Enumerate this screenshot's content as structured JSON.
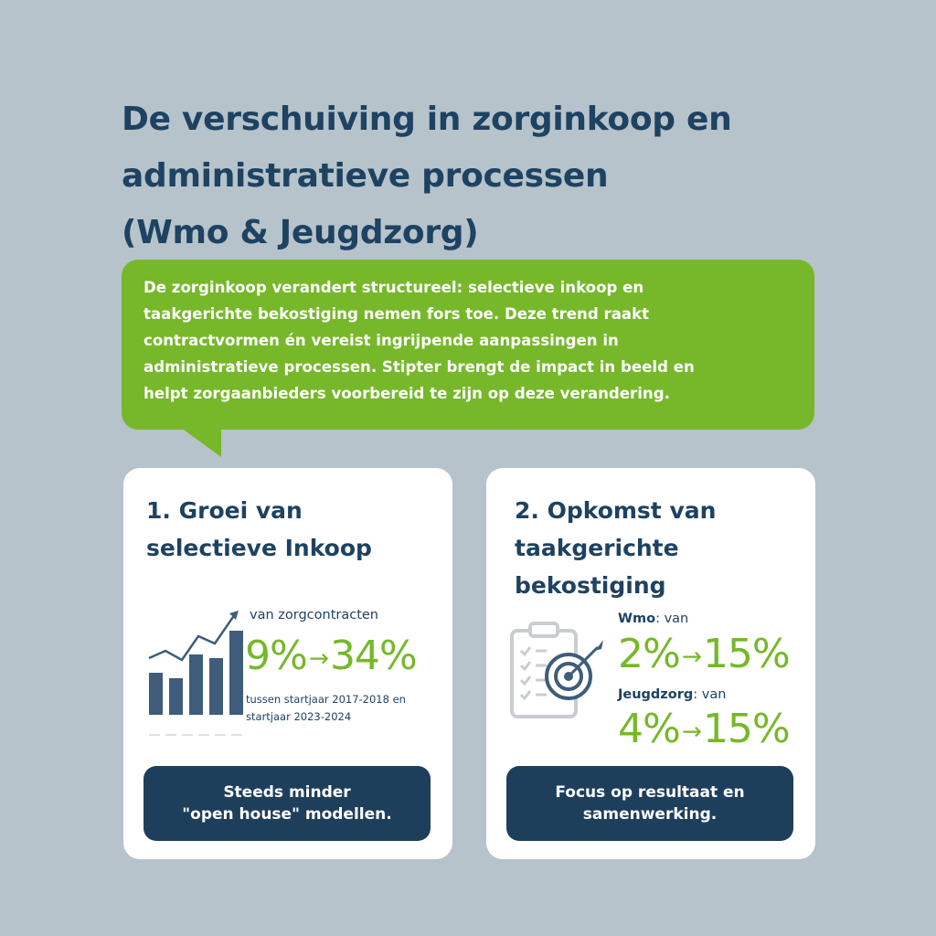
{
  "title": {
    "line1": "De verschuiving in zorginkoop en",
    "line2": "administratieve processen",
    "line3": "(Wmo & Jeugdzorg)"
  },
  "intro": {
    "line1": "De zorginkoop verandert structureel: selectieve inkoop en",
    "line2": "taakgerichte bekostiging nemen fors toe. Deze trend raakt",
    "line3": "contractvormen én vereist ingrijpende aanpassingen in",
    "line4": "administratieve processen. Stipter brengt de impact in beeld en",
    "line5": "helpt zorgaanbieders voorbereid te zijn op deze verandering."
  },
  "card1": {
    "title_line1": "1. Groei van",
    "title_line2": "selectieve Inkoop",
    "label": "van zorgcontracten",
    "from": "9%",
    "to": "34%",
    "note_line1": "tussen startjaar 2017-2018 en",
    "note_line2": "startjaar 2023-2024",
    "cta_line1": "Steeds minder",
    "cta_line2": "\"open house\" modellen.",
    "chart_icon": "bar-chart-trend-icon"
  },
  "card2": {
    "title_line1": "2. Opkomst van",
    "title_line2": "taakgerichte",
    "title_line3": "bekostiging",
    "wmo_label": "Wmo",
    "wmo_suffix": ": van",
    "wmo_from": "2%",
    "wmo_to": "15%",
    "jeugd_label": "Jeugdzorg",
    "jeugd_suffix": ": van",
    "jeugd_from": "4%",
    "jeugd_to": "15%",
    "cta_line1": "Focus op resultaat en",
    "cta_line2": "samenwerking.",
    "icon": "clipboard-target-icon"
  },
  "arrow": "→",
  "colors": {
    "background": "#b6c3cb",
    "navy": "#1e3f5c",
    "green": "#76b82a",
    "card": "#ffffff"
  }
}
